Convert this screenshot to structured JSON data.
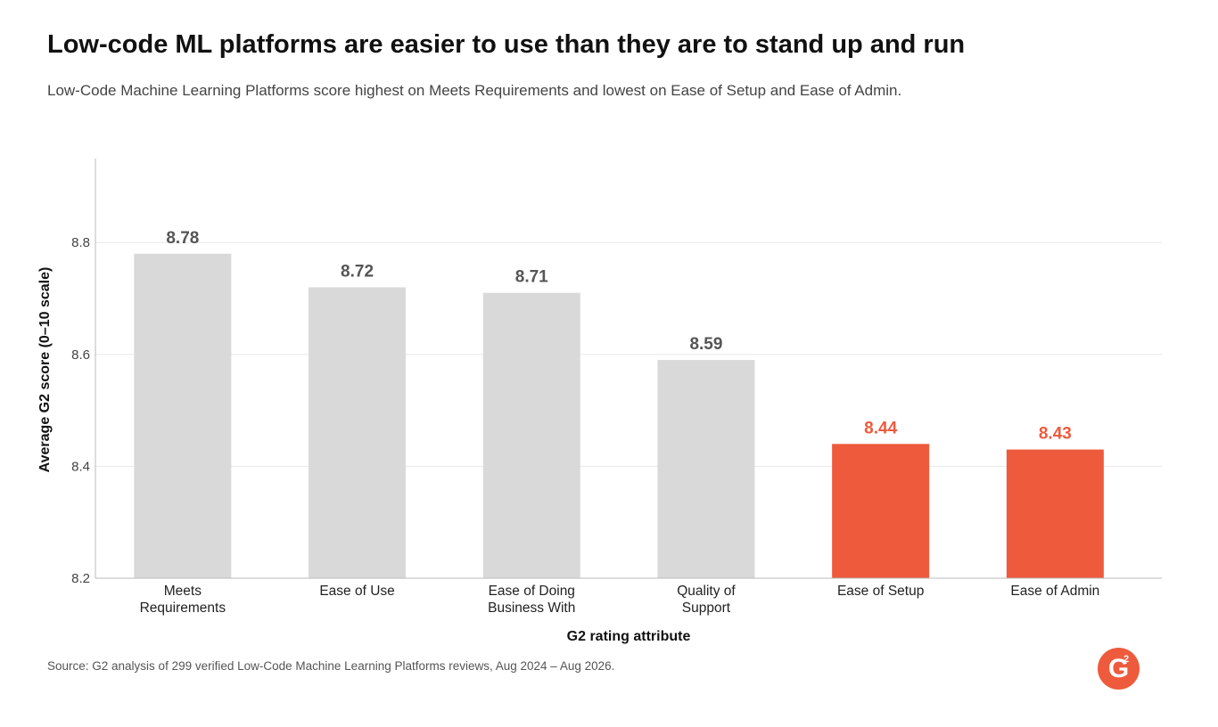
{
  "header": {
    "title": "Low-code ML platforms are easier to use than they are to stand up and run",
    "subtitle": "Low-Code Machine Learning Platforms score highest on Meets Requirements and lowest on Ease of Setup and Ease of Admin."
  },
  "chart_data": {
    "type": "bar",
    "categories": [
      [
        "Meets",
        "Requirements"
      ],
      [
        "Ease of Use"
      ],
      [
        "Ease of Doing",
        "Business With"
      ],
      [
        "Quality of",
        "Support"
      ],
      [
        "Ease of Setup"
      ],
      [
        "Ease of Admin"
      ]
    ],
    "values": [
      8.78,
      8.72,
      8.71,
      8.59,
      8.44,
      8.43
    ],
    "value_labels": [
      "8.78",
      "8.72",
      "8.71",
      "8.59",
      "8.44",
      "8.43"
    ],
    "highlighted": [
      false,
      false,
      false,
      false,
      true,
      true
    ],
    "ylim": [
      8.2,
      8.95
    ],
    "yticks": [
      8.2,
      8.4,
      8.6,
      8.8
    ],
    "ytick_labels": [
      "8.2",
      "8.4",
      "8.6",
      "8.8"
    ],
    "xlabel": "G2 rating attribute",
    "ylabel": "Average G2 score (0–10 scale)",
    "grid": "horizontal",
    "colors": {
      "bar": "#d9d9d9",
      "highlight": "#ee5a3c",
      "value_label": "#555555",
      "highlight_label": "#ee5a3c",
      "grid": "#e8e8e8",
      "axis": "#bbbbbb"
    }
  },
  "footer": {
    "source": "Source: G2 analysis of 299 verified Low-Code Machine Learning Platforms reviews, Aug 2024 – Aug 2026.",
    "logo_letter": "G",
    "logo_superscript": "2",
    "logo_icon": "g2-logo-icon",
    "logo_color": "#ee5a3c"
  }
}
